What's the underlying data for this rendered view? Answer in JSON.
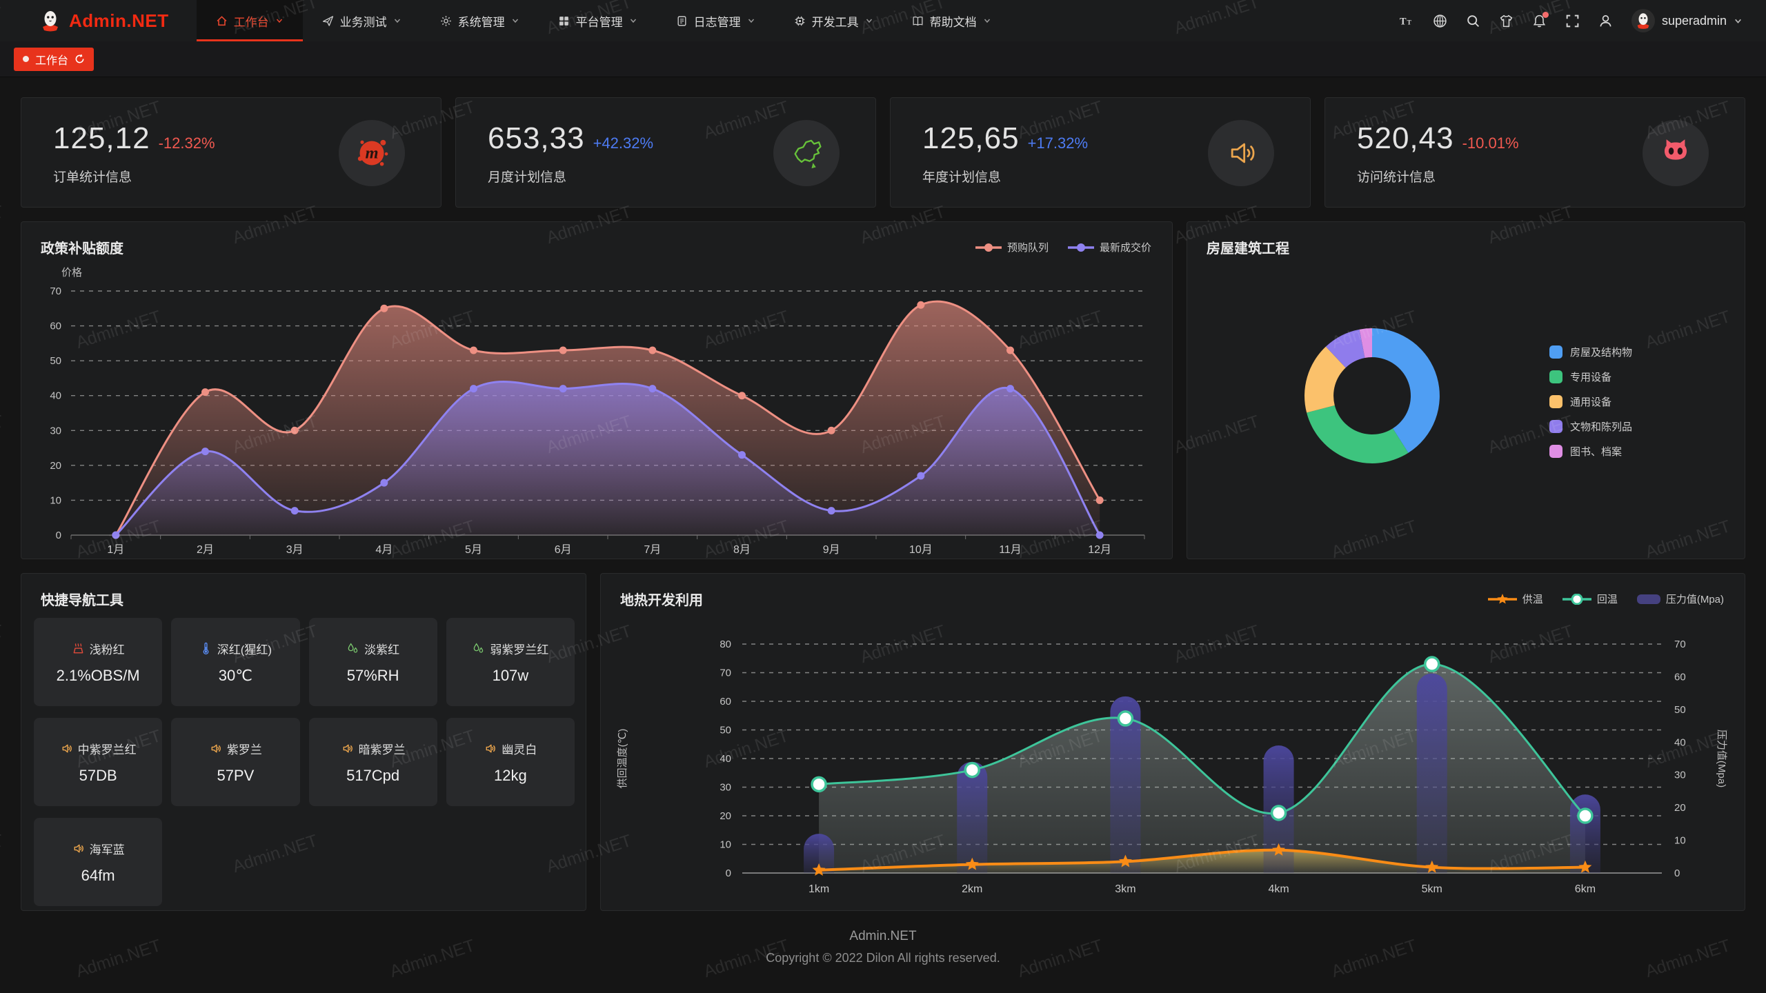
{
  "watermark_text": "Admin.NET",
  "navbar": {
    "logo_text": "Admin.NET",
    "menu": [
      {
        "label": "工作台",
        "icon": "home-icon",
        "active": true
      },
      {
        "label": "业务测试",
        "icon": "send-icon",
        "active": false
      },
      {
        "label": "系统管理",
        "icon": "gear-icon",
        "active": false
      },
      {
        "label": "平台管理",
        "icon": "grid-icon",
        "active": false
      },
      {
        "label": "日志管理",
        "icon": "log-icon",
        "active": false
      },
      {
        "label": "开发工具",
        "icon": "chip-icon",
        "active": false
      },
      {
        "label": "帮助文档",
        "icon": "book-icon",
        "active": false
      }
    ],
    "right_icons": [
      {
        "name": "font-size-icon",
        "badge": false
      },
      {
        "name": "language-icon",
        "badge": false
      },
      {
        "name": "search-icon",
        "badge": false
      },
      {
        "name": "theme-icon",
        "badge": false
      },
      {
        "name": "notification-icon",
        "badge": true
      },
      {
        "name": "fullscreen-icon",
        "badge": false
      },
      {
        "name": "user-icon",
        "badge": false
      }
    ],
    "username": "superadmin"
  },
  "tabbar": {
    "active_tab": "工作台"
  },
  "stat_cards": [
    {
      "value": "125,12",
      "delta": "-12.32%",
      "delta_color": "#f15950",
      "label": "订单统计信息",
      "icon": "meetup-icon"
    },
    {
      "value": "653,33",
      "delta": "+42.32%",
      "delta_color": "#4d7bf3",
      "label": "月度计划信息",
      "icon": "china-map-icon"
    },
    {
      "value": "125,65",
      "delta": "+17.32%",
      "delta_color": "#4d7bf3",
      "label": "年度计划信息",
      "icon": "speaker-orange-icon"
    },
    {
      "value": "520,43",
      "delta": "-10.01%",
      "delta_color": "#f15950",
      "label": "访问统计信息",
      "icon": "cat-icon"
    }
  ],
  "chart_data": [
    {
      "id": "subsidy",
      "type": "area",
      "title": "政策补贴额度",
      "ylabel": "价格",
      "categories": [
        "1月",
        "2月",
        "3月",
        "4月",
        "5月",
        "6月",
        "7月",
        "8月",
        "9月",
        "10月",
        "11月",
        "12月"
      ],
      "series": [
        {
          "name": "预购队列",
          "color": "#ee9083",
          "values": [
            0,
            41,
            30,
            65,
            53,
            53,
            53,
            40,
            30,
            66,
            53,
            10
          ]
        },
        {
          "name": "最新成交价",
          "color": "#8f82f0",
          "values": [
            0,
            24,
            7,
            15,
            42,
            42,
            42,
            23,
            7,
            17,
            42,
            0
          ]
        }
      ],
      "ylim": [
        0,
        70
      ],
      "ytick_step": 10,
      "grid": "dashed",
      "legend_position": "top-right"
    },
    {
      "id": "building",
      "type": "pie",
      "title": "房屋建筑工程",
      "donut": true,
      "legend_position": "right",
      "slices": [
        {
          "label": "房屋及结构物",
          "value": 41,
          "color": "#4f9ef3"
        },
        {
          "label": "专用设备",
          "value": 30,
          "color": "#3dc47e"
        },
        {
          "label": "通用设备",
          "value": 17,
          "color": "#fbc16b"
        },
        {
          "label": "文物和陈列品",
          "value": 9,
          "color": "#8f7cec"
        },
        {
          "label": "图书、档案",
          "value": 3,
          "color": "#df8ee4"
        }
      ]
    },
    {
      "id": "geothermal",
      "type": "line+bar",
      "title": "地热开发利用",
      "categories": [
        "1km",
        "2km",
        "3km",
        "4km",
        "5km",
        "6km"
      ],
      "ylabel_left": "供回温度(℃)",
      "ylabel_right": "压力值(Mpa)",
      "ylim_left": [
        0,
        80
      ],
      "ylim_right": [
        0,
        70
      ],
      "ytick_step": 10,
      "grid": "dashed",
      "legend_position": "top-right",
      "series": [
        {
          "name": "供温",
          "type": "line",
          "axis": "left",
          "marker": "star",
          "color": "#fa8c16",
          "values": [
            1,
            3,
            4,
            8,
            2,
            2
          ]
        },
        {
          "name": "回温",
          "type": "line",
          "axis": "left",
          "marker": "circle",
          "color": "#3ec59a",
          "values": [
            31,
            36,
            54,
            21,
            73,
            20
          ]
        },
        {
          "name": "压力值(Mpa)",
          "type": "bar",
          "axis": "right",
          "color": "#454180",
          "values": [
            12,
            34,
            54,
            39,
            61,
            24
          ]
        }
      ]
    }
  ],
  "quick_nav": {
    "title": "快捷导航工具",
    "items": [
      {
        "name": "浅粉红",
        "value": "2.1%OBS/M",
        "icon": "heat-icon",
        "icon_color": "#e04a3a"
      },
      {
        "name": "深红(猩红)",
        "value": "30℃",
        "icon": "thermometer-icon",
        "icon_color": "#5b8ff9"
      },
      {
        "name": "淡紫红",
        "value": "57%RH",
        "icon": "humidity-icon",
        "icon_color": "#7bc96f"
      },
      {
        "name": "弱紫罗兰红",
        "value": "107w",
        "icon": "humidity-icon",
        "icon_color": "#7bc96f"
      },
      {
        "name": "中紫罗兰红",
        "value": "57DB",
        "icon": "speaker-small-icon",
        "icon_color": "#eba54d"
      },
      {
        "name": "紫罗兰",
        "value": "57PV",
        "icon": "speaker-small-icon",
        "icon_color": "#eba54d"
      },
      {
        "name": "暗紫罗兰",
        "value": "517Cpd",
        "icon": "speaker-small-icon",
        "icon_color": "#eba54d"
      },
      {
        "name": "幽灵白",
        "value": "12kg",
        "icon": "speaker-small-icon",
        "icon_color": "#eba54d"
      },
      {
        "name": "海军蓝",
        "value": "64fm",
        "icon": "speaker-small-icon",
        "icon_color": "#eba54d"
      }
    ]
  },
  "footer": {
    "line1": "Admin.NET",
    "line2": "Copyright © 2022 Dilon All rights reserved."
  }
}
